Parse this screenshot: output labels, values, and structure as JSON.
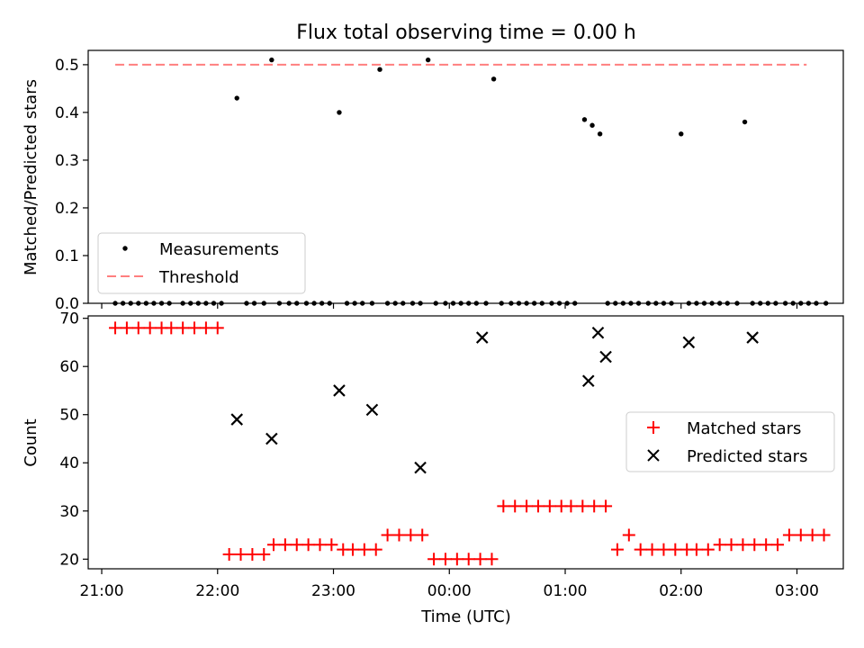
{
  "chart_data": [
    {
      "type": "scatter",
      "title": "Flux total observing time = 0.00 h",
      "xlabel": "",
      "ylabel": "Matched/Predicted stars",
      "xlim": [
        "20:53",
        "03:24"
      ],
      "ylim": [
        0,
        0.53
      ],
      "yticks": [
        "0.0",
        "0.1",
        "0.2",
        "0.3",
        "0.4",
        "0.5"
      ],
      "threshold": {
        "name": "Threshold",
        "value": 0.5,
        "x_from": "21:07",
        "x_to": "03:05",
        "color": "#ff7f7f"
      },
      "legend": {
        "position": "lower-left"
      },
      "series": [
        {
          "name": "Measurements",
          "color": "#000000",
          "x": [
            "21:07",
            "21:11",
            "21:15",
            "21:19",
            "21:23",
            "21:27",
            "21:31",
            "21:35",
            "21:42",
            "21:46",
            "21:50",
            "21:54",
            "21:58",
            "22:02",
            "22:10",
            "22:15",
            "22:19",
            "22:24",
            "22:28",
            "22:32",
            "22:37",
            "22:41",
            "22:46",
            "22:50",
            "22:54",
            "22:58",
            "23:03",
            "23:07",
            "23:11",
            "23:15",
            "23:20",
            "23:24",
            "23:28",
            "23:32",
            "23:36",
            "23:41",
            "23:45",
            "23:49",
            "23:53",
            "23:58",
            "00:02",
            "00:06",
            "00:10",
            "00:14",
            "00:19",
            "00:23",
            "00:27",
            "00:32",
            "00:36",
            "00:40",
            "00:44",
            "00:48",
            "00:53",
            "00:57",
            "01:01",
            "01:05",
            "01:10",
            "01:14",
            "01:18",
            "01:22",
            "01:26",
            "01:30",
            "01:34",
            "01:38",
            "01:43",
            "01:47",
            "01:51",
            "01:55",
            "02:00",
            "02:04",
            "02:08",
            "02:12",
            "02:16",
            "02:20",
            "02:24",
            "02:29",
            "02:33",
            "02:37",
            "02:41",
            "02:45",
            "02:49",
            "02:54",
            "02:58",
            "03:02",
            "03:06",
            "03:10",
            "03:15"
          ],
          "y": [
            0,
            0,
            0,
            0,
            0,
            0,
            0,
            0,
            0,
            0,
            0,
            0,
            0,
            0,
            0.43,
            0,
            0,
            0,
            0.51,
            0,
            0,
            0,
            0,
            0,
            0,
            0,
            0.4,
            0,
            0,
            0,
            0,
            0.49,
            0,
            0,
            0,
            0,
            0,
            0.51,
            0,
            0,
            0,
            0,
            0,
            0,
            0,
            0.47,
            0,
            0,
            0,
            0,
            0,
            0,
            0,
            0,
            0,
            0,
            0.385,
            0.373,
            0.355,
            0,
            0,
            0,
            0,
            0,
            0,
            0,
            0,
            0,
            0.355,
            0,
            0,
            0,
            0,
            0,
            0,
            0,
            0.38,
            0,
            0,
            0,
            0,
            0,
            0,
            0,
            0,
            0,
            0
          ]
        }
      ]
    },
    {
      "type": "scatter",
      "title": "",
      "xlabel": "Time (UTC)",
      "ylabel": "Count",
      "xlim": [
        "20:53",
        "03:24"
      ],
      "ylim": [
        18,
        70.5
      ],
      "yticks": [
        "20",
        "30",
        "40",
        "50",
        "60",
        "70"
      ],
      "xticks": [
        "21:00",
        "22:00",
        "23:00",
        "00:00",
        "01:00",
        "02:00",
        "03:00"
      ],
      "legend": {
        "position": "center-right"
      },
      "series": [
        {
          "name": "Matched stars",
          "color": "#ff0000",
          "marker": "plus",
          "x": [
            "21:07",
            "21:13",
            "21:19",
            "21:25",
            "21:31",
            "21:36",
            "21:42",
            "21:48",
            "21:54",
            "22:00",
            "22:06",
            "22:12",
            "22:18",
            "22:24",
            "22:29",
            "22:35",
            "22:41",
            "22:47",
            "22:53",
            "22:59",
            "23:05",
            "23:10",
            "23:16",
            "23:22",
            "23:28",
            "23:34",
            "23:40",
            "23:46",
            "23:52",
            "23:58",
            "00:04",
            "00:10",
            "00:16",
            "00:22",
            "00:28",
            "00:34",
            "00:40",
            "00:46",
            "00:52",
            "00:58",
            "01:03",
            "01:09",
            "01:15",
            "01:21",
            "01:27",
            "01:33",
            "01:39",
            "01:45",
            "01:51",
            "01:57",
            "02:03",
            "02:08",
            "02:14",
            "02:20",
            "02:26",
            "02:32",
            "02:38",
            "02:44",
            "02:50",
            "02:56",
            "03:02",
            "03:08",
            "03:14"
          ],
          "y": [
            68,
            68,
            68,
            68,
            68,
            68,
            68,
            68,
            68,
            68,
            21,
            21,
            21,
            21,
            23,
            23,
            23,
            23,
            23,
            23,
            22,
            22,
            22,
            22,
            25,
            25,
            25,
            25,
            20,
            20,
            20,
            20,
            20,
            20,
            31,
            31,
            31,
            31,
            31,
            31,
            31,
            31,
            31,
            31,
            22,
            25,
            22,
            22,
            22,
            22,
            22,
            22,
            22,
            23,
            23,
            23,
            23,
            23,
            23,
            25,
            25,
            25,
            25
          ]
        },
        {
          "name": "Predicted stars",
          "color": "#000000",
          "marker": "x",
          "x": [
            "22:10",
            "22:28",
            "23:03",
            "23:20",
            "23:45",
            "00:17",
            "01:12",
            "01:17",
            "01:21",
            "02:04",
            "02:37"
          ],
          "y": [
            49,
            45,
            55,
            51,
            39,
            66,
            57,
            67,
            62,
            65,
            66
          ]
        }
      ]
    }
  ]
}
